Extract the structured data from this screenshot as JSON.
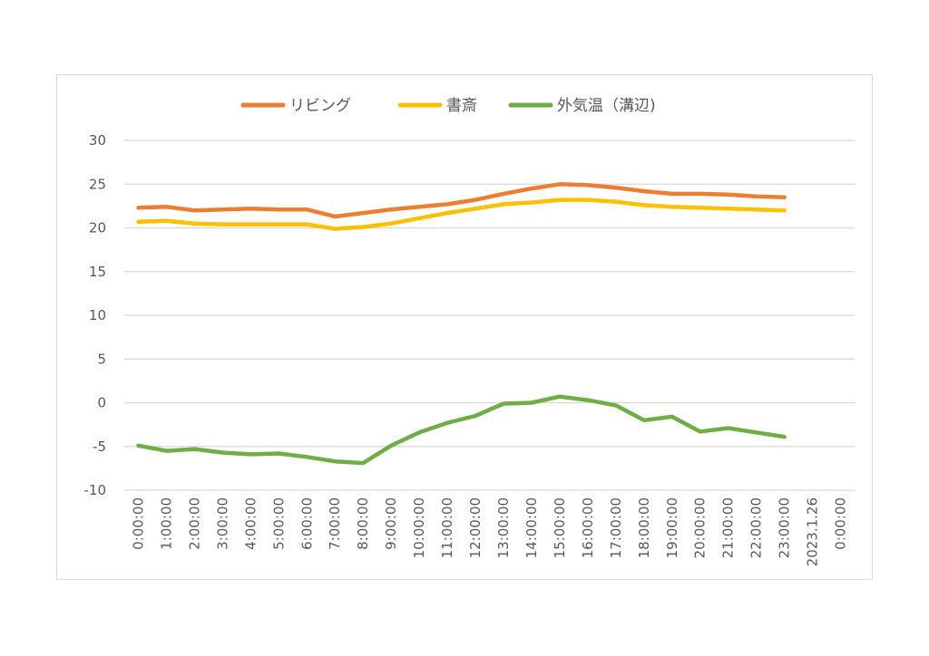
{
  "chart_data": {
    "type": "line",
    "title": "",
    "xlabel": "",
    "ylabel": "",
    "ylim": [
      -10,
      30
    ],
    "yticks": [
      30,
      25,
      20,
      15,
      10,
      5,
      0,
      -5,
      -10
    ],
    "ytick_labels": [
      "30",
      "25",
      "20",
      "15",
      "10",
      "5",
      "0",
      "-5",
      "-10"
    ],
    "grid": true,
    "legend_position": "top",
    "categories": [
      "0:00:00",
      "1:00:00",
      "2:00:00",
      "3:00:00",
      "4:00:00",
      "5:00:00",
      "6:00:00",
      "7:00:00",
      "8:00:00",
      "9:00:00",
      "10:00:00",
      "11:00:00",
      "12:00:00",
      "13:00:00",
      "14:00:00",
      "15:00:00",
      "16:00:00",
      "17:00:00",
      "18:00:00",
      "19:00:00",
      "20:00:00",
      "21:00:00",
      "22:00:00",
      "23:00:00",
      "2023.1.26",
      "0:00:00"
    ],
    "series": [
      {
        "name": "リビング",
        "color": "#ED7D31",
        "values": [
          22.3,
          22.4,
          22.0,
          22.1,
          22.2,
          22.1,
          22.1,
          21.3,
          21.7,
          22.1,
          22.4,
          22.7,
          23.2,
          23.9,
          24.5,
          25.0,
          24.9,
          24.6,
          24.2,
          23.9,
          23.9,
          23.8,
          23.6,
          23.5,
          null,
          null
        ]
      },
      {
        "name": "書斎",
        "color": "#FFC000",
        "values": [
          20.7,
          20.8,
          20.5,
          20.4,
          20.4,
          20.4,
          20.4,
          19.9,
          20.1,
          20.5,
          21.1,
          21.7,
          22.2,
          22.7,
          22.9,
          23.2,
          23.2,
          23.0,
          22.6,
          22.4,
          22.3,
          22.2,
          22.1,
          22.0,
          null,
          null
        ]
      },
      {
        "name": "外気温（溝辺)",
        "color": "#70AD47",
        "values": [
          -4.9,
          -5.5,
          -5.3,
          -5.7,
          -5.9,
          -5.8,
          -6.2,
          -6.7,
          -6.9,
          -4.9,
          -3.4,
          -2.3,
          -1.5,
          -0.1,
          0.0,
          0.7,
          0.3,
          -0.3,
          -2.0,
          -1.6,
          -3.3,
          -2.9,
          -3.4,
          -3.9,
          null,
          null
        ]
      }
    ]
  }
}
